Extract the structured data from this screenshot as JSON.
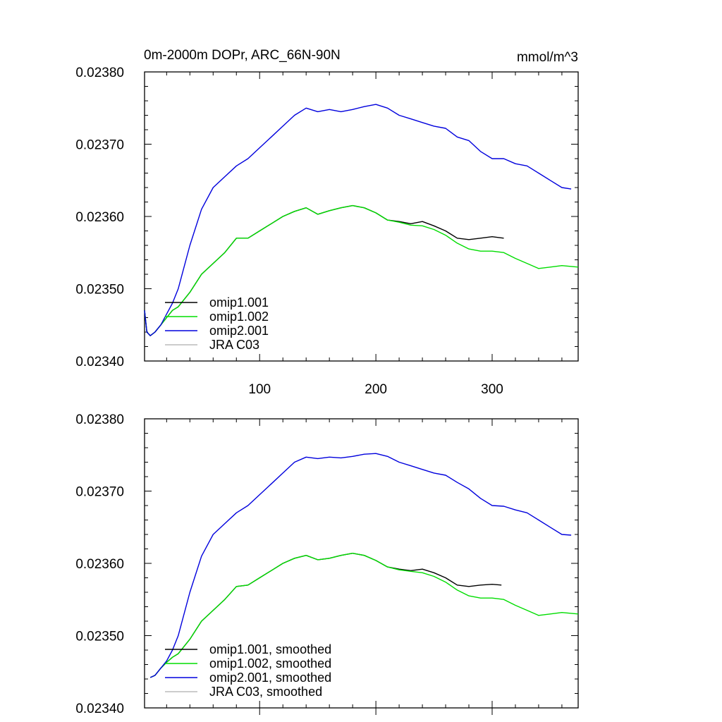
{
  "chart_data": [
    {
      "type": "line",
      "title": "0m-2000m DOPr, ARC_66N-90N",
      "units": "mmol/m^3",
      "xlim": [
        1,
        374
      ],
      "ylim": [
        0.0234,
        0.0238
      ],
      "x_ticks": [
        "100",
        "200",
        "300"
      ],
      "y_ticks": [
        "0.02380",
        "0.02370",
        "0.02360",
        "0.02350",
        "0.02340"
      ],
      "grid": false,
      "legend": "bottom-left",
      "series": [
        {
          "name": "omip1.001",
          "color": "#000000",
          "points": [
            [
              1,
              0.02347
            ],
            [
              3,
              0.02344
            ],
            [
              6,
              0.023435
            ],
            [
              10,
              0.02344
            ],
            [
              15,
              0.02345
            ],
            [
              20,
              0.02346
            ],
            [
              25,
              0.02347
            ],
            [
              30,
              0.023475
            ],
            [
              40,
              0.023495
            ],
            [
              50,
              0.02352
            ],
            [
              60,
              0.023535
            ],
            [
              70,
              0.02355
            ],
            [
              80,
              0.02357
            ],
            [
              90,
              0.02357
            ],
            [
              100,
              0.02358
            ],
            [
              110,
              0.02359
            ],
            [
              120,
              0.0236
            ],
            [
              130,
              0.023607
            ],
            [
              140,
              0.023612
            ],
            [
              150,
              0.023603
            ],
            [
              160,
              0.023608
            ],
            [
              170,
              0.023612
            ],
            [
              180,
              0.023615
            ],
            [
              190,
              0.023612
            ],
            [
              200,
              0.023605
            ],
            [
              210,
              0.023595
            ],
            [
              220,
              0.023593
            ],
            [
              230,
              0.02359
            ],
            [
              240,
              0.023593
            ],
            [
              250,
              0.023587
            ],
            [
              260,
              0.02358
            ],
            [
              270,
              0.02357
            ],
            [
              280,
              0.023568
            ],
            [
              290,
              0.02357
            ],
            [
              300,
              0.023572
            ],
            [
              310,
              0.02357
            ]
          ]
        },
        {
          "name": "omip1.002",
          "color": "#00dd00",
          "points": [
            [
              1,
              0.02347
            ],
            [
              3,
              0.02344
            ],
            [
              6,
              0.023435
            ],
            [
              10,
              0.02344
            ],
            [
              15,
              0.02345
            ],
            [
              20,
              0.02346
            ],
            [
              25,
              0.02347
            ],
            [
              30,
              0.023475
            ],
            [
              40,
              0.023495
            ],
            [
              50,
              0.02352
            ],
            [
              60,
              0.023535
            ],
            [
              70,
              0.02355
            ],
            [
              80,
              0.02357
            ],
            [
              90,
              0.02357
            ],
            [
              100,
              0.02358
            ],
            [
              110,
              0.02359
            ],
            [
              120,
              0.0236
            ],
            [
              130,
              0.023607
            ],
            [
              140,
              0.023612
            ],
            [
              150,
              0.023603
            ],
            [
              160,
              0.023608
            ],
            [
              170,
              0.023612
            ],
            [
              180,
              0.023615
            ],
            [
              190,
              0.023612
            ],
            [
              200,
              0.023605
            ],
            [
              210,
              0.023595
            ],
            [
              220,
              0.023592
            ],
            [
              230,
              0.023588
            ],
            [
              240,
              0.023587
            ],
            [
              250,
              0.023582
            ],
            [
              260,
              0.023574
            ],
            [
              270,
              0.023563
            ],
            [
              280,
              0.023555
            ],
            [
              290,
              0.023552
            ],
            [
              300,
              0.023552
            ],
            [
              310,
              0.02355
            ],
            [
              320,
              0.023542
            ],
            [
              330,
              0.023535
            ],
            [
              340,
              0.023528
            ],
            [
              350,
              0.02353
            ],
            [
              360,
              0.023532
            ],
            [
              374,
              0.02353
            ]
          ]
        },
        {
          "name": "omip2.001",
          "color": "#0000dd",
          "points": [
            [
              1,
              0.02347
            ],
            [
              3,
              0.02344
            ],
            [
              6,
              0.023435
            ],
            [
              10,
              0.02344
            ],
            [
              15,
              0.02345
            ],
            [
              20,
              0.023465
            ],
            [
              25,
              0.02348
            ],
            [
              30,
              0.0235
            ],
            [
              40,
              0.02356
            ],
            [
              50,
              0.02361
            ],
            [
              60,
              0.02364
            ],
            [
              70,
              0.023655
            ],
            [
              80,
              0.02367
            ],
            [
              90,
              0.02368
            ],
            [
              100,
              0.023695
            ],
            [
              110,
              0.02371
            ],
            [
              120,
              0.023725
            ],
            [
              130,
              0.02374
            ],
            [
              140,
              0.02375
            ],
            [
              150,
              0.023745
            ],
            [
              160,
              0.023748
            ],
            [
              170,
              0.023745
            ],
            [
              180,
              0.023748
            ],
            [
              190,
              0.023752
            ],
            [
              200,
              0.023755
            ],
            [
              210,
              0.02375
            ],
            [
              220,
              0.02374
            ],
            [
              230,
              0.023735
            ],
            [
              240,
              0.02373
            ],
            [
              250,
              0.023725
            ],
            [
              260,
              0.023722
            ],
            [
              270,
              0.02371
            ],
            [
              280,
              0.023705
            ],
            [
              290,
              0.02369
            ],
            [
              300,
              0.02368
            ],
            [
              310,
              0.02368
            ],
            [
              320,
              0.023673
            ],
            [
              330,
              0.02367
            ],
            [
              340,
              0.02366
            ],
            [
              350,
              0.02365
            ],
            [
              360,
              0.02364
            ],
            [
              368,
              0.023638
            ]
          ]
        },
        {
          "name": "JRA C03",
          "color": "#bbbbbb",
          "points": []
        }
      ]
    },
    {
      "type": "line",
      "xlim": [
        1,
        374
      ],
      "ylim": [
        0.0234,
        0.0238
      ],
      "y_ticks": [
        "0.02380",
        "0.02370",
        "0.02360",
        "0.02350",
        "0.02340"
      ],
      "grid": false,
      "legend": "bottom-left",
      "series": [
        {
          "name": "omip1.001, smoothed",
          "color": "#000000",
          "points": [
            [
              6,
              0.023442
            ],
            [
              10,
              0.023445
            ],
            [
              15,
              0.023455
            ],
            [
              20,
              0.023463
            ],
            [
              25,
              0.02347
            ],
            [
              30,
              0.023475
            ],
            [
              40,
              0.023495
            ],
            [
              50,
              0.02352
            ],
            [
              60,
              0.023535
            ],
            [
              70,
              0.02355
            ],
            [
              80,
              0.023568
            ],
            [
              90,
              0.02357
            ],
            [
              100,
              0.02358
            ],
            [
              110,
              0.02359
            ],
            [
              120,
              0.0236
            ],
            [
              130,
              0.023607
            ],
            [
              140,
              0.023611
            ],
            [
              150,
              0.023605
            ],
            [
              160,
              0.023607
            ],
            [
              170,
              0.023611
            ],
            [
              180,
              0.023614
            ],
            [
              190,
              0.023611
            ],
            [
              200,
              0.023604
            ],
            [
              210,
              0.023595
            ],
            [
              220,
              0.023592
            ],
            [
              230,
              0.02359
            ],
            [
              240,
              0.023592
            ],
            [
              250,
              0.023587
            ],
            [
              260,
              0.02358
            ],
            [
              270,
              0.02357
            ],
            [
              280,
              0.023568
            ],
            [
              290,
              0.02357
            ],
            [
              300,
              0.023571
            ],
            [
              308,
              0.02357
            ]
          ]
        },
        {
          "name": "omip1.002, smoothed",
          "color": "#00dd00",
          "points": [
            [
              6,
              0.023442
            ],
            [
              10,
              0.023445
            ],
            [
              15,
              0.023455
            ],
            [
              20,
              0.023463
            ],
            [
              25,
              0.02347
            ],
            [
              30,
              0.023475
            ],
            [
              40,
              0.023495
            ],
            [
              50,
              0.02352
            ],
            [
              60,
              0.023535
            ],
            [
              70,
              0.02355
            ],
            [
              80,
              0.023568
            ],
            [
              90,
              0.02357
            ],
            [
              100,
              0.02358
            ],
            [
              110,
              0.02359
            ],
            [
              120,
              0.0236
            ],
            [
              130,
              0.023607
            ],
            [
              140,
              0.023611
            ],
            [
              150,
              0.023605
            ],
            [
              160,
              0.023607
            ],
            [
              170,
              0.023611
            ],
            [
              180,
              0.023614
            ],
            [
              190,
              0.023611
            ],
            [
              200,
              0.023604
            ],
            [
              210,
              0.023595
            ],
            [
              220,
              0.023591
            ],
            [
              230,
              0.023589
            ],
            [
              240,
              0.023587
            ],
            [
              250,
              0.023582
            ],
            [
              260,
              0.023574
            ],
            [
              270,
              0.023563
            ],
            [
              280,
              0.023555
            ],
            [
              290,
              0.023552
            ],
            [
              300,
              0.023552
            ],
            [
              310,
              0.02355
            ],
            [
              320,
              0.023542
            ],
            [
              330,
              0.023535
            ],
            [
              340,
              0.023528
            ],
            [
              350,
              0.02353
            ],
            [
              360,
              0.023532
            ],
            [
              374,
              0.02353
            ]
          ]
        },
        {
          "name": "omip2.001, smoothed",
          "color": "#0000dd",
          "points": [
            [
              6,
              0.023442
            ],
            [
              10,
              0.023445
            ],
            [
              15,
              0.023455
            ],
            [
              20,
              0.023465
            ],
            [
              25,
              0.02348
            ],
            [
              30,
              0.0235
            ],
            [
              40,
              0.02356
            ],
            [
              50,
              0.02361
            ],
            [
              60,
              0.02364
            ],
            [
              70,
              0.023655
            ],
            [
              80,
              0.02367
            ],
            [
              90,
              0.02368
            ],
            [
              100,
              0.023695
            ],
            [
              110,
              0.02371
            ],
            [
              120,
              0.023725
            ],
            [
              130,
              0.02374
            ],
            [
              140,
              0.023747
            ],
            [
              150,
              0.023745
            ],
            [
              160,
              0.023747
            ],
            [
              170,
              0.023746
            ],
            [
              180,
              0.023748
            ],
            [
              190,
              0.023751
            ],
            [
              200,
              0.023752
            ],
            [
              210,
              0.023748
            ],
            [
              220,
              0.02374
            ],
            [
              230,
              0.023735
            ],
            [
              240,
              0.02373
            ],
            [
              250,
              0.023725
            ],
            [
              260,
              0.023722
            ],
            [
              270,
              0.023712
            ],
            [
              280,
              0.023703
            ],
            [
              290,
              0.02369
            ],
            [
              300,
              0.02368
            ],
            [
              310,
              0.023679
            ],
            [
              320,
              0.023674
            ],
            [
              330,
              0.02367
            ],
            [
              340,
              0.02366
            ],
            [
              350,
              0.02365
            ],
            [
              360,
              0.02364
            ],
            [
              368,
              0.023639
            ]
          ]
        },
        {
          "name": "JRA C03, smoothed",
          "color": "#bbbbbb",
          "points": []
        }
      ]
    }
  ]
}
